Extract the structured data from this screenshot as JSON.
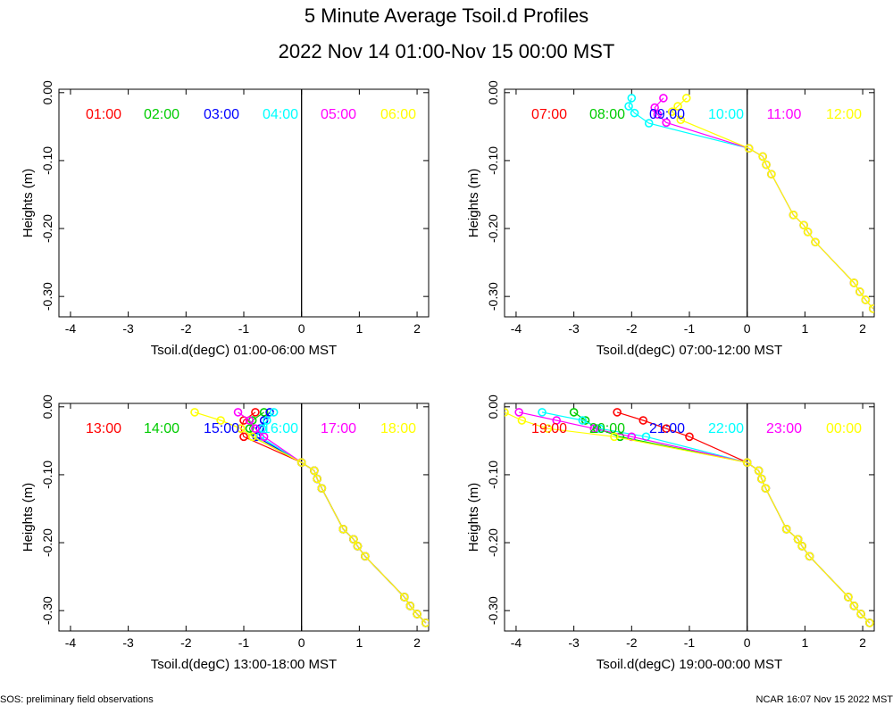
{
  "header": {
    "title": "5 Minute Average Tsoil.d Profiles",
    "subtitle": "2022 Nov 14 01:00-Nov 15 00:00 MST"
  },
  "footer": {
    "left": "SOS: preliminary field observations",
    "right": "NCAR 16:07 Nov 15 2022 MST"
  },
  "colors": [
    "#ff0000",
    "#00cc00",
    "#0000ff",
    "#00ffff",
    "#ff00ff",
    "#ffff00"
  ],
  "chart_data": [
    {
      "type": "scatter",
      "panel": "top-left",
      "ylabel": "Heights (m)",
      "xlabel": "Tsoil.d(degC) 01:00-06:00 MST",
      "xlim": [
        -4.2,
        2.2
      ],
      "ylim": [
        -0.33,
        0.005
      ],
      "xticks": [
        "-4",
        "-3",
        "-2",
        "-1",
        "0",
        "1",
        "2"
      ],
      "yticks": [
        "0.00",
        "-0.10",
        "-0.20",
        "-0.30"
      ],
      "series": [
        {
          "name": "01:00",
          "points": []
        },
        {
          "name": "02:00",
          "points": []
        },
        {
          "name": "03:00",
          "points": []
        },
        {
          "name": "04:00",
          "points": []
        },
        {
          "name": "05:00",
          "points": []
        },
        {
          "name": "06:00",
          "points": []
        }
      ]
    },
    {
      "type": "scatter",
      "panel": "top-right",
      "ylabel": "Heights (m)",
      "xlabel": "Tsoil.d(degC) 07:00-12:00 MST",
      "xlim": [
        -4.2,
        2.2
      ],
      "ylim": [
        -0.33,
        0.005
      ],
      "xticks": [
        "-4",
        "-3",
        "-2",
        "-1",
        "0",
        "1",
        "2"
      ],
      "yticks": [
        "0.00",
        "-0.10",
        "-0.20",
        "-0.30"
      ],
      "series": [
        {
          "name": "07:00",
          "points": []
        },
        {
          "name": "08:00",
          "points": []
        },
        {
          "name": "09:00",
          "points": []
        },
        {
          "name": "10:00",
          "points": [
            [
              -2.0,
              -0.008
            ],
            [
              -2.05,
              -0.02
            ],
            [
              -1.95,
              -0.03
            ],
            [
              -1.7,
              -0.045
            ],
            [
              0.03,
              -0.082
            ],
            [
              0.27,
              -0.094
            ],
            [
              0.33,
              -0.106
            ],
            [
              0.42,
              -0.12
            ],
            [
              0.8,
              -0.18
            ],
            [
              0.98,
              -0.195
            ],
            [
              1.05,
              -0.205
            ],
            [
              1.18,
              -0.22
            ],
            [
              1.85,
              -0.28
            ],
            [
              1.95,
              -0.293
            ],
            [
              2.05,
              -0.305
            ],
            [
              2.18,
              -0.318
            ]
          ]
        },
        {
          "name": "11:00",
          "points": [
            [
              -1.45,
              -0.008
            ],
            [
              -1.6,
              -0.022
            ],
            [
              -1.55,
              -0.032
            ],
            [
              -1.4,
              -0.044
            ],
            [
              0.03,
              -0.082
            ],
            [
              0.27,
              -0.094
            ],
            [
              0.33,
              -0.106
            ],
            [
              0.42,
              -0.12
            ],
            [
              0.8,
              -0.18
            ],
            [
              0.98,
              -0.195
            ],
            [
              1.05,
              -0.205
            ],
            [
              1.18,
              -0.22
            ],
            [
              1.85,
              -0.28
            ],
            [
              1.95,
              -0.293
            ],
            [
              2.05,
              -0.305
            ],
            [
              2.18,
              -0.318
            ]
          ]
        },
        {
          "name": "12:00",
          "points": [
            [
              -1.05,
              -0.008
            ],
            [
              -1.2,
              -0.02
            ],
            [
              -1.3,
              -0.028
            ],
            [
              -1.15,
              -0.04
            ],
            [
              0.03,
              -0.082
            ],
            [
              0.27,
              -0.094
            ],
            [
              0.33,
              -0.106
            ],
            [
              0.42,
              -0.12
            ],
            [
              0.8,
              -0.18
            ],
            [
              0.98,
              -0.195
            ],
            [
              1.05,
              -0.205
            ],
            [
              1.18,
              -0.22
            ],
            [
              1.85,
              -0.28
            ],
            [
              1.95,
              -0.293
            ],
            [
              2.05,
              -0.305
            ],
            [
              2.18,
              -0.318
            ]
          ]
        }
      ]
    },
    {
      "type": "scatter",
      "panel": "bottom-left",
      "ylabel": "Heights (m)",
      "xlabel": "Tsoil.d(degC) 13:00-18:00 MST",
      "xlim": [
        -4.2,
        2.2
      ],
      "ylim": [
        -0.33,
        0.005
      ],
      "xticks": [
        "-4",
        "-3",
        "-2",
        "-1",
        "0",
        "1",
        "2"
      ],
      "yticks": [
        "0.00",
        "-0.10",
        "-0.20",
        "-0.30"
      ],
      "series": [
        {
          "name": "13:00",
          "points": [
            [
              -0.8,
              -0.008
            ],
            [
              -1.0,
              -0.02
            ],
            [
              -1.05,
              -0.032
            ],
            [
              -1.0,
              -0.044
            ],
            [
              0.0,
              -0.082
            ],
            [
              0.22,
              -0.094
            ],
            [
              0.27,
              -0.106
            ],
            [
              0.35,
              -0.12
            ],
            [
              0.72,
              -0.18
            ],
            [
              0.9,
              -0.195
            ],
            [
              0.97,
              -0.205
            ],
            [
              1.1,
              -0.22
            ],
            [
              1.78,
              -0.28
            ],
            [
              1.88,
              -0.293
            ],
            [
              2.0,
              -0.305
            ],
            [
              2.15,
              -0.318
            ]
          ]
        },
        {
          "name": "14:00",
          "points": [
            [
              -0.65,
              -0.008
            ],
            [
              -0.85,
              -0.02
            ],
            [
              -0.9,
              -0.032
            ],
            [
              -0.85,
              -0.044
            ],
            [
              0.0,
              -0.082
            ],
            [
              0.22,
              -0.094
            ],
            [
              0.27,
              -0.106
            ],
            [
              0.35,
              -0.12
            ],
            [
              0.72,
              -0.18
            ],
            [
              0.9,
              -0.195
            ],
            [
              0.97,
              -0.205
            ],
            [
              1.1,
              -0.22
            ],
            [
              1.78,
              -0.28
            ],
            [
              1.88,
              -0.293
            ],
            [
              2.0,
              -0.305
            ],
            [
              2.15,
              -0.318
            ]
          ]
        },
        {
          "name": "15:00",
          "points": [
            [
              -0.55,
              -0.008
            ],
            [
              -0.65,
              -0.02
            ],
            [
              -0.72,
              -0.032
            ],
            [
              -0.78,
              -0.044
            ],
            [
              0.0,
              -0.082
            ],
            [
              0.22,
              -0.094
            ],
            [
              0.27,
              -0.106
            ],
            [
              0.35,
              -0.12
            ],
            [
              0.72,
              -0.18
            ],
            [
              0.9,
              -0.195
            ],
            [
              0.97,
              -0.205
            ],
            [
              1.1,
              -0.22
            ],
            [
              1.78,
              -0.28
            ],
            [
              1.88,
              -0.293
            ],
            [
              2.0,
              -0.305
            ],
            [
              2.15,
              -0.318
            ]
          ]
        },
        {
          "name": "16:00",
          "points": [
            [
              -0.48,
              -0.008
            ],
            [
              -0.6,
              -0.02
            ],
            [
              -0.68,
              -0.032
            ],
            [
              -0.72,
              -0.044
            ],
            [
              0.0,
              -0.082
            ],
            [
              0.22,
              -0.094
            ],
            [
              0.27,
              -0.106
            ],
            [
              0.35,
              -0.12
            ],
            [
              0.72,
              -0.18
            ],
            [
              0.9,
              -0.195
            ],
            [
              0.97,
              -0.205
            ],
            [
              1.1,
              -0.22
            ],
            [
              1.78,
              -0.28
            ],
            [
              1.88,
              -0.293
            ],
            [
              2.0,
              -0.305
            ],
            [
              2.15,
              -0.318
            ]
          ]
        },
        {
          "name": "17:00",
          "points": [
            [
              -1.1,
              -0.008
            ],
            [
              -0.9,
              -0.02
            ],
            [
              -0.8,
              -0.032
            ],
            [
              -0.65,
              -0.044
            ],
            [
              0.0,
              -0.082
            ],
            [
              0.22,
              -0.094
            ],
            [
              0.27,
              -0.106
            ],
            [
              0.35,
              -0.12
            ],
            [
              0.72,
              -0.18
            ],
            [
              0.9,
              -0.195
            ],
            [
              0.97,
              -0.205
            ],
            [
              1.1,
              -0.22
            ],
            [
              1.78,
              -0.28
            ],
            [
              1.88,
              -0.293
            ],
            [
              2.0,
              -0.305
            ],
            [
              2.15,
              -0.318
            ]
          ]
        },
        {
          "name": "18:00",
          "points": [
            [
              -1.85,
              -0.008
            ],
            [
              -1.4,
              -0.02
            ],
            [
              -1.05,
              -0.032
            ],
            [
              -0.85,
              -0.044
            ],
            [
              0.0,
              -0.082
            ],
            [
              0.22,
              -0.094
            ],
            [
              0.27,
              -0.106
            ],
            [
              0.35,
              -0.12
            ],
            [
              0.72,
              -0.18
            ],
            [
              0.9,
              -0.195
            ],
            [
              0.97,
              -0.205
            ],
            [
              1.1,
              -0.22
            ],
            [
              1.78,
              -0.28
            ],
            [
              1.88,
              -0.293
            ],
            [
              2.0,
              -0.305
            ],
            [
              2.15,
              -0.318
            ]
          ]
        }
      ]
    },
    {
      "type": "scatter",
      "panel": "bottom-right",
      "ylabel": "Heights (m)",
      "xlabel": "Tsoil.d(degC) 19:00-00:00 MST",
      "xlim": [
        -4.2,
        2.2
      ],
      "ylim": [
        -0.33,
        0.005
      ],
      "xticks": [
        "-4",
        "-3",
        "-2",
        "-1",
        "0",
        "1",
        "2"
      ],
      "yticks": [
        "0.00",
        "-0.10",
        "-0.20",
        "-0.30"
      ],
      "series": [
        {
          "name": "19:00",
          "points": [
            [
              -2.25,
              -0.008
            ],
            [
              -1.8,
              -0.02
            ],
            [
              -1.4,
              -0.032
            ],
            [
              -1.0,
              -0.044
            ],
            [
              0.0,
              -0.082
            ],
            [
              0.2,
              -0.094
            ],
            [
              0.25,
              -0.106
            ],
            [
              0.32,
              -0.12
            ],
            [
              0.68,
              -0.18
            ],
            [
              0.88,
              -0.195
            ],
            [
              0.95,
              -0.205
            ],
            [
              1.08,
              -0.22
            ],
            [
              1.75,
              -0.28
            ],
            [
              1.85,
              -0.293
            ],
            [
              1.97,
              -0.305
            ],
            [
              2.12,
              -0.318
            ]
          ]
        },
        {
          "name": "20:00",
          "points": [
            [
              -3.0,
              -0.008
            ],
            [
              -2.8,
              -0.02
            ],
            [
              -2.6,
              -0.032
            ],
            [
              -2.2,
              -0.044
            ],
            [
              0.0,
              -0.082
            ],
            [
              0.2,
              -0.094
            ],
            [
              0.25,
              -0.106
            ],
            [
              0.32,
              -0.12
            ],
            [
              0.68,
              -0.18
            ],
            [
              0.88,
              -0.195
            ],
            [
              0.95,
              -0.205
            ],
            [
              1.08,
              -0.22
            ],
            [
              1.75,
              -0.28
            ],
            [
              1.85,
              -0.293
            ],
            [
              1.97,
              -0.305
            ],
            [
              2.12,
              -0.318
            ]
          ]
        },
        {
          "name": "21:00",
          "points": []
        },
        {
          "name": "22:00",
          "points": [
            [
              -3.55,
              -0.008
            ],
            [
              -2.85,
              -0.02
            ],
            [
              -2.55,
              -0.032
            ],
            [
              -1.75,
              -0.044
            ],
            [
              0.0,
              -0.082
            ],
            [
              0.2,
              -0.094
            ],
            [
              0.25,
              -0.106
            ],
            [
              0.32,
              -0.12
            ],
            [
              0.68,
              -0.18
            ],
            [
              0.88,
              -0.195
            ],
            [
              0.95,
              -0.205
            ],
            [
              1.08,
              -0.22
            ],
            [
              1.75,
              -0.28
            ],
            [
              1.85,
              -0.293
            ],
            [
              1.97,
              -0.305
            ],
            [
              2.12,
              -0.318
            ]
          ]
        },
        {
          "name": "23:00",
          "points": [
            [
              -3.95,
              -0.008
            ],
            [
              -3.3,
              -0.02
            ],
            [
              -2.65,
              -0.032
            ],
            [
              -2.0,
              -0.044
            ],
            [
              0.0,
              -0.082
            ],
            [
              0.2,
              -0.094
            ],
            [
              0.25,
              -0.106
            ],
            [
              0.32,
              -0.12
            ],
            [
              0.68,
              -0.18
            ],
            [
              0.88,
              -0.195
            ],
            [
              0.95,
              -0.205
            ],
            [
              1.08,
              -0.22
            ],
            [
              1.75,
              -0.28
            ],
            [
              1.85,
              -0.293
            ],
            [
              1.97,
              -0.305
            ],
            [
              2.12,
              -0.318
            ]
          ]
        },
        {
          "name": "00:00",
          "points": [
            [
              -4.2,
              -0.008
            ],
            [
              -3.9,
              -0.02
            ],
            [
              -3.45,
              -0.032
            ],
            [
              -2.3,
              -0.044
            ],
            [
              0.0,
              -0.082
            ],
            [
              0.2,
              -0.094
            ],
            [
              0.25,
              -0.106
            ],
            [
              0.32,
              -0.12
            ],
            [
              0.68,
              -0.18
            ],
            [
              0.88,
              -0.195
            ],
            [
              0.95,
              -0.205
            ],
            [
              1.08,
              -0.22
            ],
            [
              1.75,
              -0.28
            ],
            [
              1.85,
              -0.293
            ],
            [
              1.97,
              -0.305
            ],
            [
              2.12,
              -0.318
            ]
          ]
        }
      ]
    }
  ]
}
